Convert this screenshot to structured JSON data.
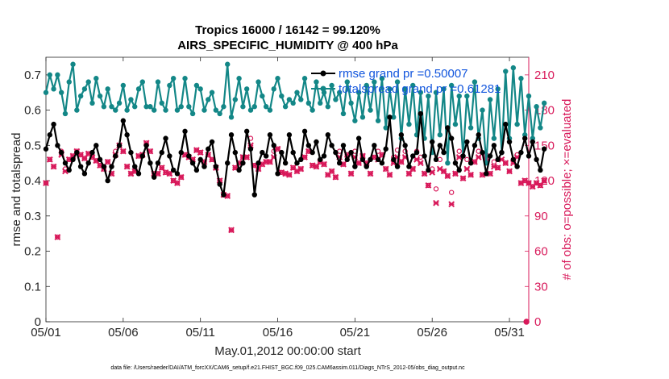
{
  "chart_data": {
    "type": "line",
    "title": "Tropics 16000 / 16142 = 99.120%",
    "subtitle": "AIRS_SPECIFIC_HUMIDITY @ 400 hPa",
    "xlabel": "May.01,2012 00:00:00 start",
    "ylabel": "rmse and totalspread",
    "y2label": "# of obs: o=possible; ×=evaluated",
    "footer": "data file: /Users/raeder/DAI/ATM_forcXX/CAM6_setup/f.e21.FHIST_BGC.f09_025.CAM6assim.011/Diags_NTrS_2012-05/obs_diag_output.nc",
    "xlim": [
      0,
      31.25
    ],
    "ylim": [
      0,
      0.75
    ],
    "y2lim": [
      0,
      225
    ],
    "xticks": [
      0,
      5,
      10,
      15,
      20,
      25,
      30
    ],
    "xtick_labels": [
      "05/01",
      "05/06",
      "05/11",
      "05/16",
      "05/21",
      "05/26",
      "05/31"
    ],
    "yticks": [
      0,
      0.1,
      0.2,
      0.3,
      0.4,
      0.5,
      0.6,
      0.7
    ],
    "ytick_labels": [
      "0",
      "0.1",
      "0.2",
      "0.3",
      "0.4",
      "0.5",
      "0.6",
      "0.7"
    ],
    "y2ticks": [
      0,
      30,
      60,
      90,
      120,
      150,
      180,
      210
    ],
    "y2tick_labels": [
      "0",
      "30",
      "60",
      "90",
      "120",
      "150",
      "180",
      "210"
    ],
    "x_step_days": 0.25,
    "series": [
      {
        "name": "rmse",
        "legend": "rmse grand pr =0.50007",
        "color": "#000000",
        "axis": "left",
        "values": [
          0.49,
          0.53,
          0.56,
          0.5,
          0.48,
          0.45,
          0.43,
          0.46,
          0.48,
          0.44,
          0.42,
          0.45,
          0.48,
          0.5,
          0.46,
          0.44,
          0.4,
          0.44,
          0.47,
          0.5,
          0.57,
          0.53,
          0.48,
          0.44,
          0.42,
          0.47,
          0.5,
          0.45,
          0.41,
          0.45,
          0.48,
          0.52,
          0.47,
          0.43,
          0.42,
          0.48,
          0.54,
          0.47,
          0.45,
          0.43,
          0.46,
          0.44,
          0.49,
          0.51,
          0.44,
          0.39,
          0.36,
          0.45,
          0.53,
          0.48,
          0.43,
          0.45,
          0.54,
          0.49,
          0.36,
          0.45,
          0.48,
          0.47,
          0.53,
          0.5,
          0.42,
          0.48,
          0.45,
          0.53,
          0.48,
          0.45,
          0.46,
          0.54,
          0.5,
          0.48,
          0.51,
          0.46,
          0.47,
          0.53,
          0.5,
          0.48,
          0.45,
          0.5,
          0.46,
          0.48,
          0.44,
          0.52,
          0.46,
          0.44,
          0.46,
          0.5,
          0.46,
          0.45,
          0.49,
          0.58,
          0.46,
          0.44,
          0.53,
          0.5,
          0.44,
          0.47,
          0.48,
          0.59,
          0.47,
          0.43,
          0.51,
          0.46,
          0.5,
          0.48,
          0.55,
          0.52,
          0.45,
          0.43,
          0.47,
          0.51,
          0.45,
          0.5,
          0.53,
          0.48,
          0.42,
          0.47,
          0.5,
          0.46,
          0.48,
          0.56,
          0.51,
          0.46,
          0.44,
          0.48,
          0.52,
          0.47,
          0.51,
          0.46,
          0.43,
          0.49
        ],
        "values_tail": []
      },
      {
        "name": "totalspread",
        "legend": "totalspread grand pr =0.61281",
        "color": "#138787",
        "axis": "left",
        "values": [
          0.65,
          0.7,
          0.66,
          0.7,
          0.65,
          0.59,
          0.68,
          0.73,
          0.6,
          0.64,
          0.66,
          0.68,
          0.62,
          0.69,
          0.64,
          0.61,
          0.66,
          0.61,
          0.6,
          0.62,
          0.67,
          0.6,
          0.63,
          0.61,
          0.66,
          0.68,
          0.61,
          0.61,
          0.6,
          0.68,
          0.62,
          0.6,
          0.67,
          0.69,
          0.6,
          0.61,
          0.69,
          0.61,
          0.59,
          0.67,
          0.66,
          0.6,
          0.63,
          0.65,
          0.6,
          0.59,
          0.61,
          0.73,
          0.58,
          0.63,
          0.69,
          0.61,
          0.66,
          0.6,
          0.61,
          0.68,
          0.64,
          0.61,
          0.6,
          0.66,
          0.69,
          0.64,
          0.61,
          0.63,
          0.62,
          0.65,
          0.63,
          0.69,
          0.62,
          0.6,
          0.68,
          0.62,
          0.65,
          0.61,
          0.67,
          0.63,
          0.65,
          0.59,
          0.68,
          0.62,
          0.57,
          0.65,
          0.58,
          0.67,
          0.6,
          0.68,
          0.57,
          0.69,
          0.55,
          0.66,
          0.58,
          0.68,
          0.52,
          0.66,
          0.56,
          0.67,
          0.53,
          0.65,
          0.52,
          0.64,
          0.48,
          0.65,
          0.53,
          0.66,
          0.45,
          0.67,
          0.56,
          0.64,
          0.47,
          0.64,
          0.55,
          0.68,
          0.52,
          0.6,
          0.45,
          0.63,
          0.52,
          0.66,
          0.48,
          0.71,
          0.52,
          0.72,
          0.56,
          0.69,
          0.53,
          0.64,
          0.52,
          0.61,
          0.55,
          0.62
        ],
        "values_tail": []
      },
      {
        "name": "obs_possible",
        "color": "#d8195a",
        "axis": "right",
        "marker": "o",
        "values": [
          118,
          138,
          132,
          72,
          145,
          130,
          138,
          141,
          145,
          142,
          139,
          143,
          140,
          137,
          133,
          130,
          136,
          126,
          145,
          150,
          145,
          132,
          126,
          128,
          141,
          142,
          152,
          145,
          126,
          126,
          131,
          127,
          126,
          120,
          118,
          123,
          142,
          140,
          138,
          146,
          144,
          136,
          142,
          138,
          131,
          120,
          108,
          107,
          78,
          131,
          135,
          140,
          140,
          156,
          133,
          130,
          134,
          136,
          136,
          145,
          147,
          127,
          126,
          125,
          131,
          128,
          130,
          140,
          145,
          133,
          132,
          136,
          134,
          125,
          128,
          123,
          145,
          134,
          142,
          126,
          145,
          135,
          141,
          135,
          126,
          140,
          145,
          142,
          130,
          125,
          140,
          146,
          136,
          145,
          126,
          130,
          145,
          140,
          126,
          116,
          130,
          113,
          138,
          128,
          124,
          110,
          126,
          145,
          122,
          138,
          125,
          136,
          145,
          125,
          142,
          126,
          136,
          131,
          144,
          135,
          128,
          138,
          142,
          118,
          120,
          118,
          115,
          118,
          116,
          120
        ],
        "values_tail": []
      },
      {
        "name": "obs_evaluated",
        "color": "#d8195a",
        "axis": "right",
        "marker": "x",
        "values": [
          118,
          138,
          132,
          72,
          142,
          128,
          138,
          141,
          145,
          142,
          139,
          143,
          140,
          137,
          133,
          130,
          136,
          126,
          142,
          150,
          145,
          132,
          126,
          128,
          141,
          142,
          152,
          145,
          126,
          126,
          131,
          127,
          126,
          120,
          118,
          123,
          142,
          140,
          138,
          146,
          144,
          136,
          142,
          138,
          131,
          120,
          108,
          107,
          78,
          131,
          135,
          140,
          140,
          150,
          133,
          130,
          134,
          136,
          136,
          140,
          147,
          127,
          126,
          125,
          131,
          128,
          130,
          140,
          145,
          133,
          132,
          136,
          134,
          125,
          128,
          123,
          140,
          134,
          142,
          126,
          140,
          135,
          141,
          135,
          126,
          140,
          138,
          142,
          130,
          125,
          135,
          140,
          136,
          140,
          126,
          130,
          138,
          135,
          126,
          116,
          127,
          101,
          130,
          128,
          124,
          100,
          126,
          140,
          122,
          130,
          125,
          136,
          140,
          125,
          138,
          126,
          132,
          131,
          138,
          135,
          128,
          135,
          140,
          118,
          120,
          118,
          115,
          118,
          116,
          120
        ],
        "values_tail": []
      }
    ],
    "final_point": {
      "x": 31.1,
      "y2": 0
    }
  }
}
